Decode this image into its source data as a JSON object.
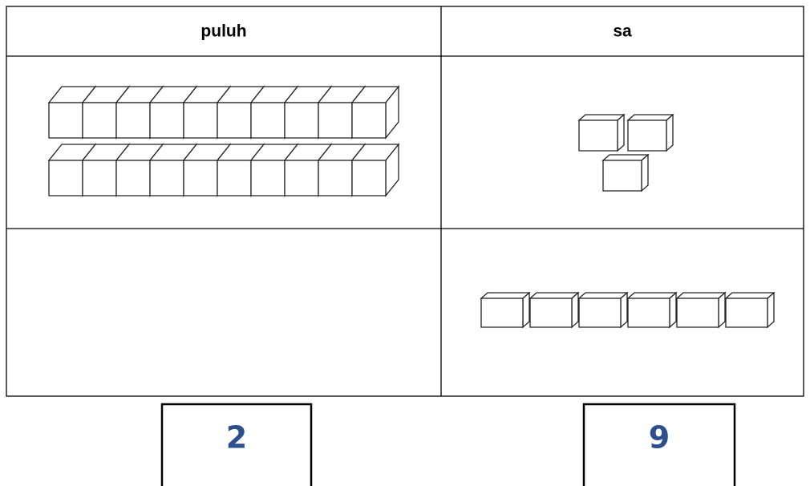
{
  "table": {
    "header": [
      "puluh",
      "sa"
    ]
  },
  "answers": [
    2,
    9
  ]
}
